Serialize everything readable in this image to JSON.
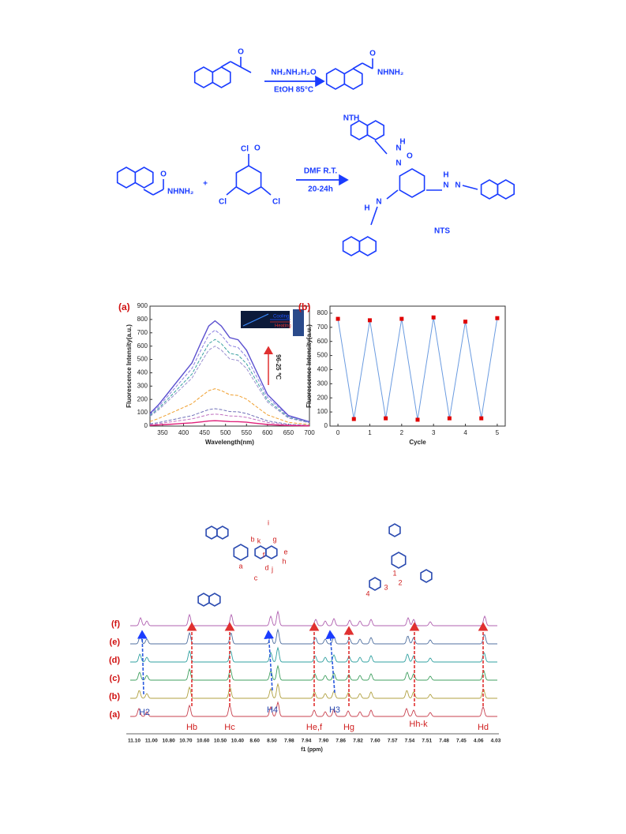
{
  "scheme": {
    "reagent1": "NH₂NH₂H₂O",
    "condition1": "EtOH   85°C",
    "group_nth": "NHNH₂",
    "label_nth": "NTH",
    "group_start": "NHNH₂",
    "plus": "+",
    "chlorine": "Cl",
    "reagent2": "DMF   R.T.",
    "condition2": "20-24h",
    "label_nts": "NTS",
    "nitrogen": "N",
    "hydrogen": "H",
    "oxygen": "O"
  },
  "chart_data": [
    {
      "type": "line",
      "panel_label": "(a)",
      "xlabel": "Wavelength(nm)",
      "ylabel": "Fluorescence Intensity(a.u.)",
      "x": [
        320,
        340,
        360,
        380,
        400,
        420,
        440,
        460,
        475,
        490,
        510,
        530,
        550,
        570,
        600,
        650,
        700
      ],
      "xlim": [
        320,
        700
      ],
      "xticks": [
        350,
        400,
        450,
        500,
        550,
        600,
        650,
        700
      ],
      "ylim": [
        0,
        900
      ],
      "yticks": [
        0,
        100,
        200,
        300,
        400,
        500,
        600,
        700,
        800,
        900
      ],
      "series": [
        {
          "color": "#5a4fcf",
          "style": "solid",
          "values": [
            95,
            158,
            237,
            316,
            395,
            474,
            616,
            751,
            790,
            751,
            664,
            648,
            569,
            435,
            237,
            79,
            32
          ]
        },
        {
          "color": "#8a7fe0",
          "style": "dashed",
          "values": [
            86,
            144,
            216,
            288,
            360,
            432,
            562,
            684,
            720,
            684,
            605,
            590,
            518,
            396,
            216,
            72,
            29
          ]
        },
        {
          "color": "#3aa0a0",
          "style": "dashed",
          "values": [
            78,
            130,
            195,
            260,
            325,
            390,
            507,
            618,
            650,
            618,
            546,
            533,
            468,
            358,
            195,
            65,
            26
          ]
        },
        {
          "color": "#9a8fd0",
          "style": "dashed",
          "values": [
            72,
            120,
            180,
            240,
            300,
            360,
            468,
            570,
            600,
            570,
            504,
            492,
            432,
            330,
            180,
            60,
            24
          ]
        },
        {
          "color": "#f0a030",
          "style": "dashed",
          "values": [
            34,
            56,
            84,
            112,
            140,
            168,
            218,
            266,
            280,
            266,
            235,
            230,
            202,
            154,
            84,
            28,
            11
          ]
        },
        {
          "color": "#7070b8",
          "style": "dashed",
          "values": [
            16,
            26,
            39,
            52,
            65,
            78,
            101,
            124,
            130,
            124,
            109,
            107,
            94,
            72,
            39,
            13,
            5
          ]
        },
        {
          "color": "#c070c0",
          "style": "dashed",
          "values": [
            11,
            18,
            27,
            36,
            45,
            54,
            70,
            86,
            90,
            86,
            76,
            74,
            65,
            50,
            27,
            9,
            4
          ]
        },
        {
          "color": "#e0207a",
          "style": "solid",
          "values": [
            5,
            8,
            12,
            16,
            20,
            24,
            31,
            38,
            40,
            38,
            34,
            33,
            29,
            22,
            12,
            4,
            2
          ]
        }
      ],
      "inset_labels": [
        "Cooling",
        "Heating"
      ],
      "annotation": "96-25 ℃"
    },
    {
      "type": "line",
      "panel_label": "(b)",
      "xlabel": "Cycle",
      "ylabel": "Fluorescence Intensity(a.u.)",
      "x": [
        0,
        0.5,
        1,
        1.5,
        2,
        2.5,
        3,
        3.5,
        4,
        4.5,
        5
      ],
      "xlim": [
        -0.25,
        5.25
      ],
      "xticks": [
        0,
        1,
        2,
        3,
        4,
        5
      ],
      "ylim": [
        0,
        850
      ],
      "yticks": [
        0,
        100,
        200,
        300,
        400,
        500,
        600,
        700,
        800
      ],
      "series": [
        {
          "color": "#6a9be0",
          "marker_color": "#e00000",
          "values": [
            760,
            50,
            750,
            55,
            760,
            45,
            770,
            55,
            740,
            55,
            765
          ]
        }
      ]
    }
  ],
  "nmr": {
    "trace_labels": [
      "(a)",
      "(b)",
      "(c)",
      "(d)",
      "(e)",
      "(f)"
    ],
    "peak_labels": [
      "H2",
      "Hb",
      "Hc",
      "H4",
      "He,f",
      "H3",
      "Hg",
      "Hh-k",
      "Hd"
    ],
    "axis_ticks": [
      "11.10",
      "11.00",
      "10.80",
      "10.70",
      "10.60",
      "10.50",
      "10.40",
      "8.60",
      "8.50",
      "7.98",
      "7.94",
      "7.90",
      "7.86",
      "7.82",
      "7.60",
      "7.57",
      "7.54",
      "7.51",
      "7.48",
      "7.45",
      "4.06",
      "4.03"
    ],
    "axis_label": "f1 (ppm)",
    "structure_labels": [
      "i",
      "g",
      "k",
      "e",
      "f",
      "h",
      "j",
      "a",
      "b",
      "c",
      "d",
      "1",
      "2",
      "3",
      "4"
    ]
  }
}
